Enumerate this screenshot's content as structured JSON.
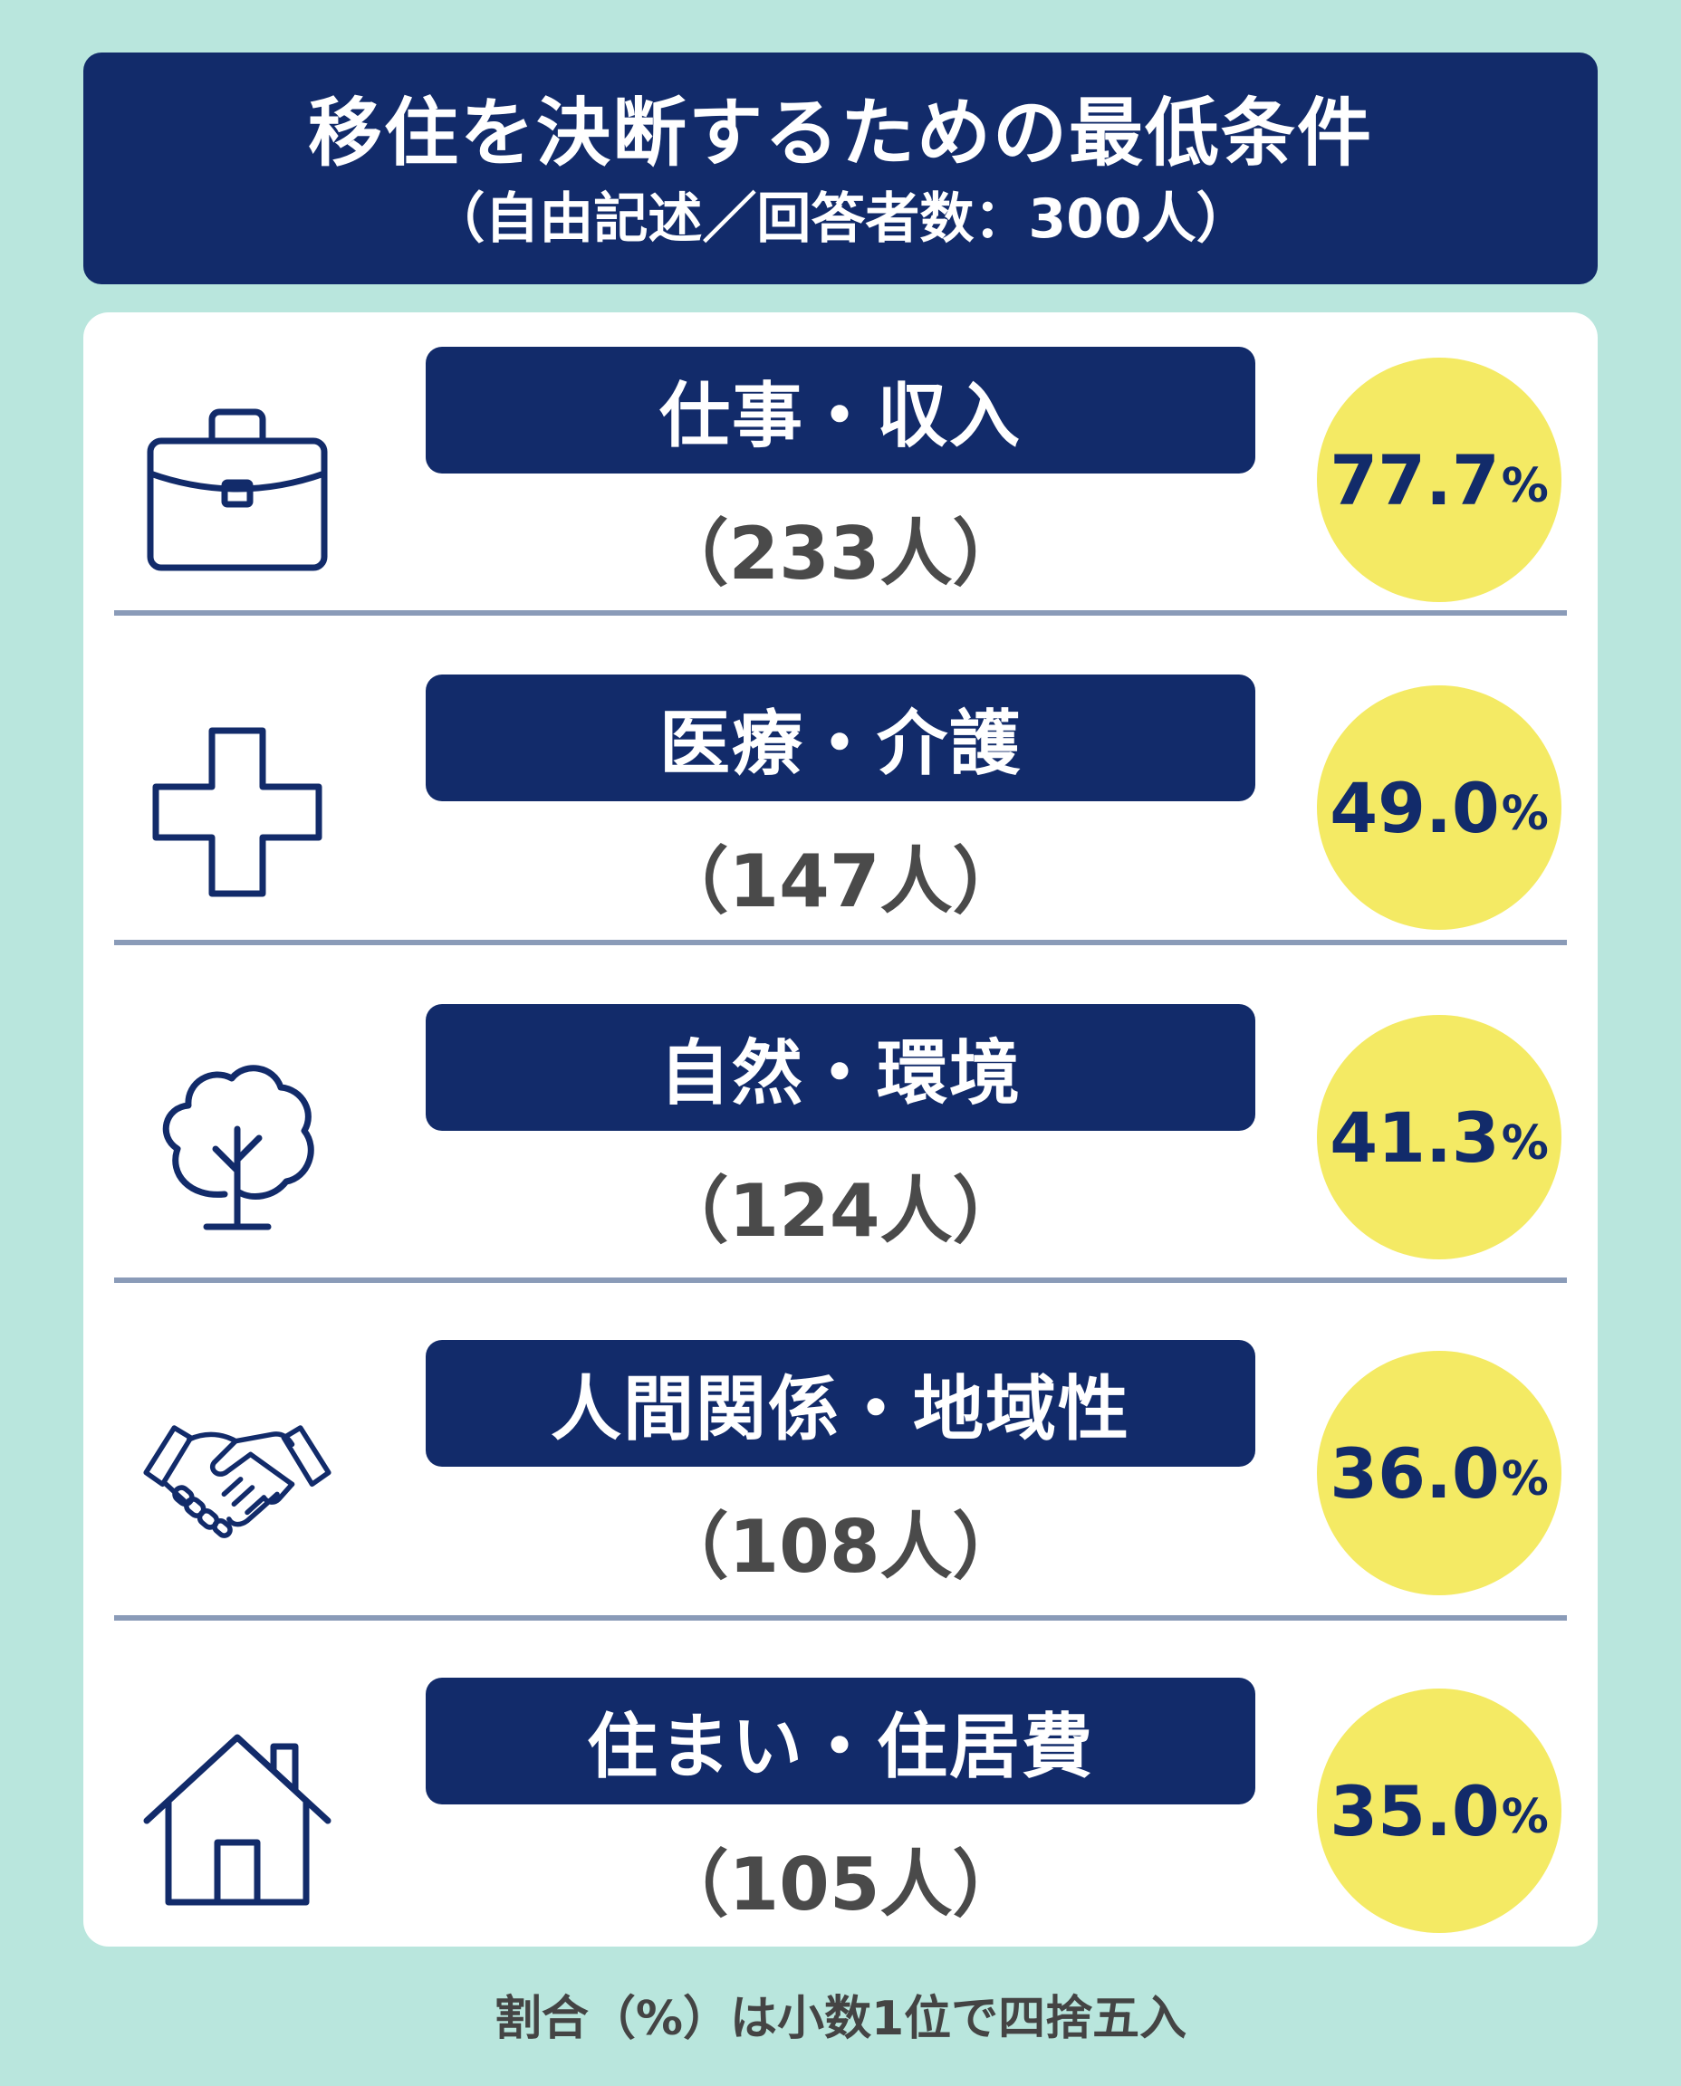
{
  "header": {
    "title": "移住を決断するための最低条件",
    "subtitle": "（自由記述／回答者数：300人）"
  },
  "items": [
    {
      "icon": "briefcase-icon",
      "label": "仕事・収入",
      "count": "（233人）",
      "percent": "77.7",
      "percent_sign": "%"
    },
    {
      "icon": "medical-cross-icon",
      "label": "医療・介護",
      "count": "（147人）",
      "percent": "49.0",
      "percent_sign": "%"
    },
    {
      "icon": "tree-icon",
      "label": "自然・環境",
      "count": "（124人）",
      "percent": "41.3",
      "percent_sign": "%"
    },
    {
      "icon": "handshake-icon",
      "label": "人間関係・地域性",
      "count": "（108人）",
      "percent": "36.0",
      "percent_sign": "%"
    },
    {
      "icon": "house-icon",
      "label": "住まい・住居費",
      "count": "（105人）",
      "percent": "35.0",
      "percent_sign": "%"
    }
  ],
  "footnote": "割合（%）は小数1位で四捨五入",
  "colors": {
    "background": "#b9e6dd",
    "navy": "#122b6a",
    "badge_yellow": "#f4ea64",
    "count_gray": "#4a4a4a",
    "divider": "#8a9bb8"
  }
}
